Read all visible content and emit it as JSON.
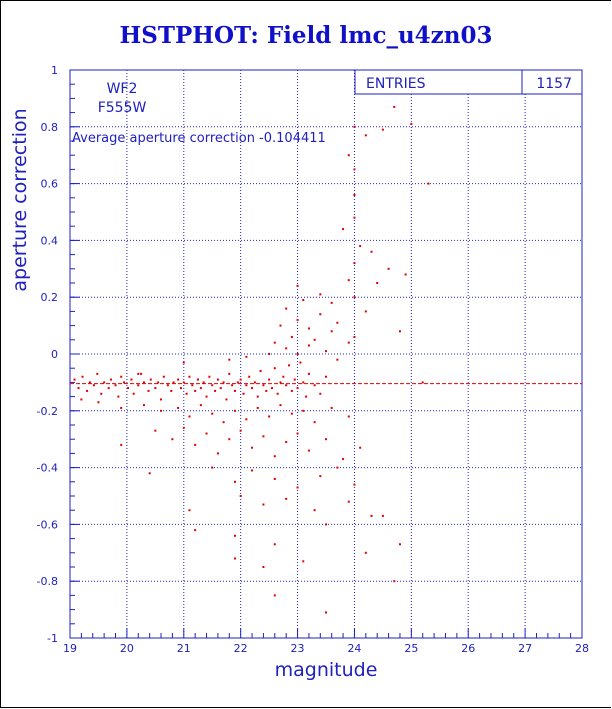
{
  "title": "HSTPHOT: Field lmc_u4zn03",
  "colors": {
    "axis": "#2020c0",
    "points": "#e00000",
    "title": "#1010c8",
    "average_line": "#e00000"
  },
  "chart_data": {
    "type": "scatter",
    "xlabel": "magnitude",
    "ylabel": "aperture correction",
    "xlim": [
      19,
      28
    ],
    "ylim": [
      -1,
      1
    ],
    "x_ticks": [
      "19",
      "20",
      "21",
      "22",
      "23",
      "24",
      "25",
      "26",
      "27",
      "28"
    ],
    "y_ticks": [
      "-1",
      "-0.8",
      "-0.6",
      "-0.4",
      "-0.2",
      "0",
      "0.2",
      "0.4",
      "0.6",
      "0.8",
      "1"
    ],
    "grid": true,
    "labels": {
      "chip": "WF2",
      "filter": "F555W"
    },
    "annotation": "Average aperture correction -0.104411",
    "average": -0.104411,
    "stats": {
      "entries_label": "ENTRIES",
      "entries_value": "1157"
    },
    "series": [
      {
        "values": [
          [
            19.08,
            -0.09
          ],
          [
            19.15,
            -0.12
          ],
          [
            19.22,
            -0.08
          ],
          [
            19.3,
            -0.13
          ],
          [
            19.35,
            -0.1
          ],
          [
            19.42,
            -0.11
          ],
          [
            19.48,
            -0.07
          ],
          [
            19.55,
            -0.14
          ],
          [
            19.6,
            -0.1
          ],
          [
            19.68,
            -0.12
          ],
          [
            19.72,
            -0.09
          ],
          [
            19.8,
            -0.11
          ],
          [
            19.85,
            -0.15
          ],
          [
            19.9,
            -0.08
          ],
          [
            19.95,
            -0.1
          ],
          [
            20.02,
            -0.12
          ],
          [
            20.08,
            -0.09
          ],
          [
            20.12,
            -0.14
          ],
          [
            20.2,
            -0.11
          ],
          [
            20.25,
            -0.07
          ],
          [
            20.3,
            -0.1
          ],
          [
            20.38,
            -0.13
          ],
          [
            20.42,
            -0.09
          ],
          [
            20.5,
            -0.12
          ],
          [
            20.55,
            -0.1
          ],
          [
            20.6,
            -0.16
          ],
          [
            20.65,
            -0.08
          ],
          [
            20.72,
            -0.11
          ],
          [
            20.78,
            -0.13
          ],
          [
            20.82,
            -0.1
          ],
          [
            20.9,
            -0.09
          ],
          [
            20.95,
            -0.12
          ],
          [
            21.0,
            -0.1
          ],
          [
            21.05,
            -0.14
          ],
          [
            21.1,
            -0.08
          ],
          [
            21.15,
            -0.11
          ],
          [
            21.2,
            -0.13
          ],
          [
            21.25,
            -0.09
          ],
          [
            21.3,
            -0.12
          ],
          [
            21.35,
            -0.1
          ],
          [
            21.4,
            -0.15
          ],
          [
            21.45,
            -0.08
          ],
          [
            21.5,
            -0.11
          ],
          [
            21.55,
            -0.13
          ],
          [
            21.6,
            -0.09
          ],
          [
            21.65,
            -0.12
          ],
          [
            21.7,
            -0.1
          ],
          [
            21.75,
            -0.16
          ],
          [
            21.8,
            -0.07
          ],
          [
            21.85,
            -0.11
          ],
          [
            21.9,
            -0.13
          ],
          [
            21.95,
            -0.1
          ],
          [
            22.0,
            -0.09
          ],
          [
            22.05,
            -0.14
          ],
          [
            22.1,
            -0.11
          ],
          [
            22.15,
            -0.08
          ],
          [
            22.2,
            -0.12
          ],
          [
            22.25,
            -0.1
          ],
          [
            22.3,
            -0.15
          ],
          [
            22.35,
            -0.06
          ],
          [
            22.4,
            -0.11
          ],
          [
            22.45,
            -0.13
          ],
          [
            22.5,
            -0.09
          ],
          [
            22.55,
            -0.12
          ],
          [
            22.6,
            -0.05
          ],
          [
            22.65,
            -0.14
          ],
          [
            22.7,
            -0.1
          ],
          [
            22.75,
            -0.08
          ],
          [
            22.8,
            -0.11
          ],
          [
            22.85,
            -0.04
          ],
          [
            22.9,
            -0.13
          ],
          [
            22.95,
            -0.09
          ],
          [
            23.0,
            -0.12
          ],
          [
            23.05,
            -0.03
          ],
          [
            23.1,
            -0.1
          ],
          [
            23.15,
            -0.15
          ],
          [
            23.2,
            -0.07
          ],
          [
            23.3,
            -0.11
          ],
          [
            23.4,
            -0.14
          ],
          [
            23.5,
            -0.08
          ],
          [
            19.2,
            -0.16
          ],
          [
            19.5,
            -0.17
          ],
          [
            19.9,
            -0.19
          ],
          [
            20.3,
            -0.18
          ],
          [
            20.6,
            -0.2
          ],
          [
            20.9,
            -0.19
          ],
          [
            21.1,
            -0.22
          ],
          [
            21.3,
            -0.18
          ],
          [
            21.5,
            -0.21
          ],
          [
            21.7,
            -0.24
          ],
          [
            21.9,
            -0.2
          ],
          [
            22.1,
            -0.23
          ],
          [
            22.3,
            -0.19
          ],
          [
            22.5,
            -0.22
          ],
          [
            22.7,
            -0.18
          ],
          [
            22.9,
            -0.21
          ],
          [
            23.1,
            -0.2
          ],
          [
            23.3,
            -0.24
          ],
          [
            23.6,
            -0.19
          ],
          [
            23.9,
            -0.22
          ],
          [
            20.5,
            -0.27
          ],
          [
            20.8,
            -0.3
          ],
          [
            21.0,
            -0.26
          ],
          [
            21.2,
            -0.32
          ],
          [
            21.4,
            -0.28
          ],
          [
            21.6,
            -0.35
          ],
          [
            21.8,
            -0.3
          ],
          [
            22.0,
            -0.27
          ],
          [
            22.2,
            -0.33
          ],
          [
            22.4,
            -0.29
          ],
          [
            22.6,
            -0.36
          ],
          [
            22.8,
            -0.31
          ],
          [
            23.0,
            -0.28
          ],
          [
            23.2,
            -0.34
          ],
          [
            23.5,
            -0.3
          ],
          [
            23.8,
            -0.37
          ],
          [
            24.1,
            -0.33
          ],
          [
            19.9,
            -0.32
          ],
          [
            20.4,
            -0.42
          ],
          [
            21.5,
            -0.4
          ],
          [
            21.9,
            -0.45
          ],
          [
            22.2,
            -0.41
          ],
          [
            22.6,
            -0.44
          ],
          [
            23.0,
            -0.47
          ],
          [
            23.4,
            -0.43
          ],
          [
            23.7,
            -0.4
          ],
          [
            24.0,
            -0.46
          ],
          [
            22.0,
            -0.5
          ],
          [
            22.4,
            -0.53
          ],
          [
            22.8,
            -0.51
          ],
          [
            23.3,
            -0.55
          ],
          [
            23.9,
            -0.52
          ],
          [
            24.3,
            -0.57
          ],
          [
            24.5,
            -0.57
          ],
          [
            21.1,
            -0.55
          ],
          [
            21.2,
            -0.62
          ],
          [
            21.9,
            -0.64
          ],
          [
            22.6,
            -0.67
          ],
          [
            23.5,
            -0.6
          ],
          [
            24.8,
            -0.67
          ],
          [
            21.9,
            -0.72
          ],
          [
            22.4,
            -0.75
          ],
          [
            23.1,
            -0.73
          ],
          [
            24.2,
            -0.7
          ],
          [
            22.6,
            -0.85
          ],
          [
            24.7,
            -0.8
          ],
          [
            23.5,
            -0.91
          ],
          [
            20.2,
            -0.07
          ],
          [
            21.0,
            -0.03
          ],
          [
            21.8,
            -0.02
          ],
          [
            22.1,
            -0.01
          ],
          [
            22.5,
            0.0
          ],
          [
            22.8,
            0.02
          ],
          [
            23.0,
            0.0
          ],
          [
            23.2,
            0.03
          ],
          [
            23.5,
            0.01
          ],
          [
            23.7,
            -0.02
          ],
          [
            22.6,
            0.04
          ],
          [
            22.9,
            0.06
          ],
          [
            23.3,
            0.05
          ],
          [
            23.6,
            0.08
          ],
          [
            23.9,
            0.04
          ],
          [
            22.7,
            0.1
          ],
          [
            23.0,
            0.12
          ],
          [
            23.2,
            0.09
          ],
          [
            23.4,
            0.14
          ],
          [
            23.7,
            0.11
          ],
          [
            24.0,
            0.06
          ],
          [
            22.8,
            0.16
          ],
          [
            23.1,
            0.19
          ],
          [
            23.4,
            0.21
          ],
          [
            23.6,
            0.18
          ],
          [
            24.0,
            0.2
          ],
          [
            24.2,
            0.15
          ],
          [
            23.0,
            0.24
          ],
          [
            23.9,
            0.26
          ],
          [
            24.4,
            0.25
          ],
          [
            24.0,
            0.32
          ],
          [
            24.6,
            0.3
          ],
          [
            24.1,
            0.38
          ],
          [
            24.3,
            0.36
          ],
          [
            23.8,
            0.44
          ],
          [
            24.0,
            0.48
          ],
          [
            24.9,
            0.28
          ],
          [
            24.0,
            0.56
          ],
          [
            24.0,
            0.65
          ],
          [
            23.9,
            0.7
          ],
          [
            24.2,
            0.77
          ],
          [
            24.5,
            0.79
          ],
          [
            24.7,
            0.87
          ],
          [
            25.0,
            0.81
          ],
          [
            25.3,
            0.6
          ],
          [
            24.0,
            0.8
          ],
          [
            24.8,
            0.08
          ],
          [
            25.2,
            -0.1
          ]
        ]
      }
    ]
  }
}
